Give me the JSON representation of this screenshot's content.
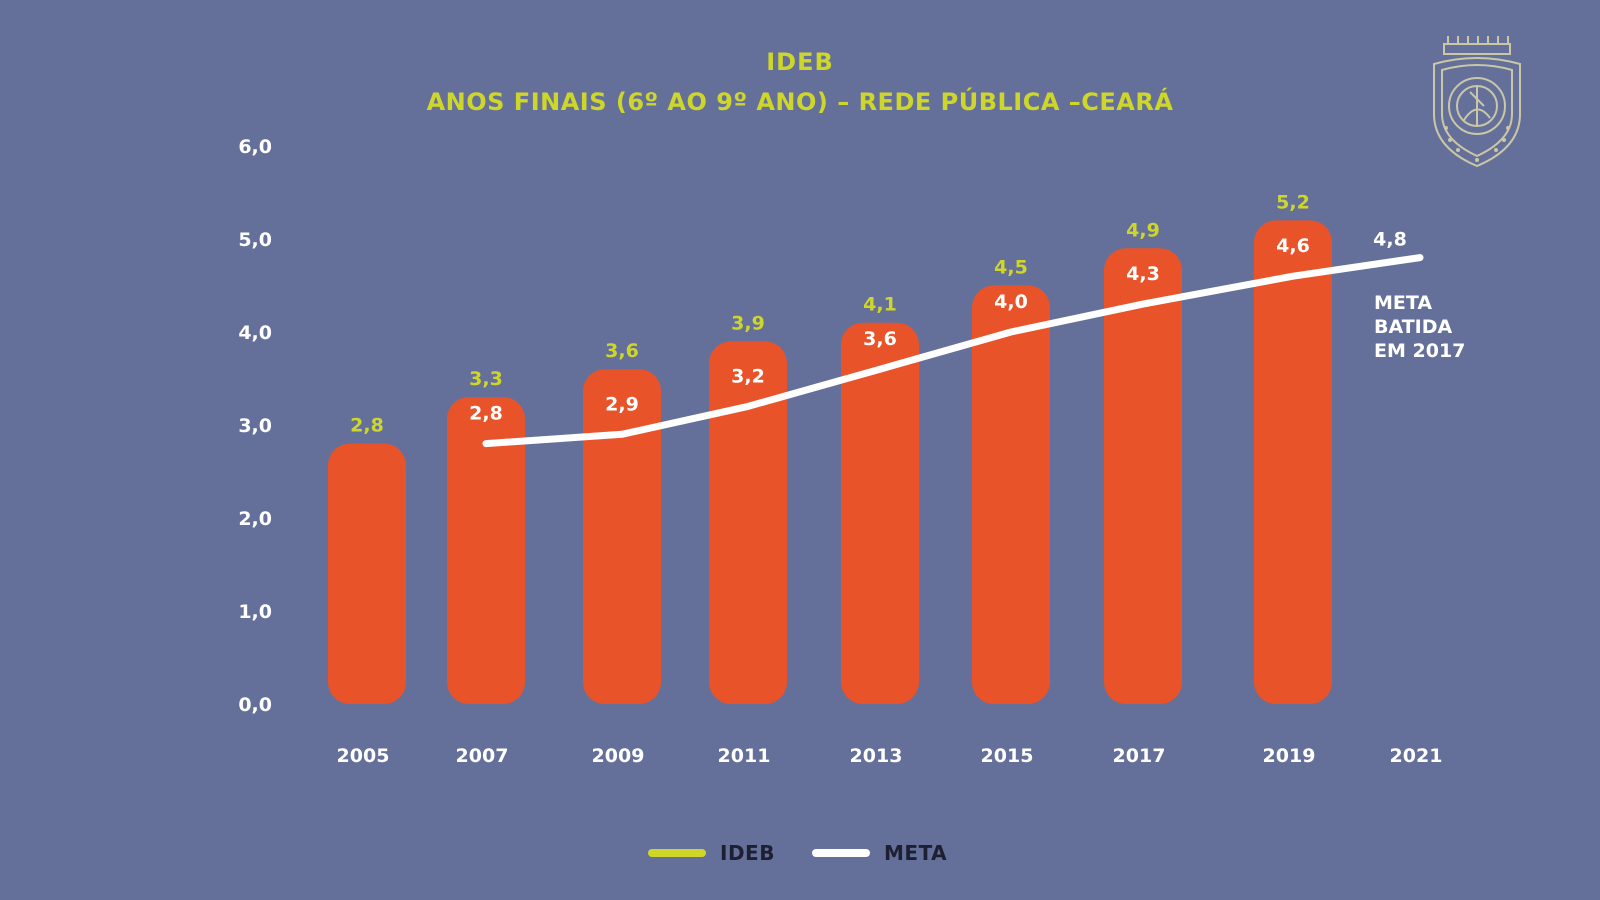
{
  "title": "IDEB",
  "subtitle": "ANOS FINAIS (6º AO 9º ANO) – REDE PÚBLICA –CEARÁ",
  "annotation": [
    "META",
    "BATIDA",
    "EM 2017"
  ],
  "legend": {
    "ideb": "IDEB",
    "meta": "META"
  },
  "colors": {
    "background": "#65709a",
    "bar": "#e9532a",
    "ideb": "#cfd62a",
    "meta": "#ffffff",
    "axis_text": "#ffffff"
  },
  "chart_data": {
    "type": "bar",
    "categories": [
      "2005",
      "2007",
      "2009",
      "2011",
      "2013",
      "2015",
      "2017",
      "2019",
      "2021"
    ],
    "ylim": [
      0,
      6
    ],
    "y_ticks": [
      "0,0",
      "1,0",
      "2,0",
      "3,0",
      "4,0",
      "5,0",
      "6,0"
    ],
    "series": [
      {
        "name": "IDEB",
        "type": "bar",
        "values": [
          2.8,
          3.3,
          3.6,
          3.9,
          4.1,
          4.5,
          4.9,
          5.2,
          null
        ],
        "labels": [
          "2,8",
          "3,3",
          "3,6",
          "3,9",
          "4,1",
          "4,5",
          "4,9",
          "5,2",
          ""
        ]
      },
      {
        "name": "META",
        "type": "line",
        "values": [
          null,
          2.8,
          2.9,
          3.2,
          3.6,
          4.0,
          4.3,
          4.6,
          4.8
        ],
        "labels": [
          "",
          "2,8",
          "2,9",
          "3,2",
          "3,6",
          "4,0",
          "4,3",
          "4,6",
          "4,8"
        ]
      }
    ],
    "grid": false,
    "legend_position": "bottom-center"
  }
}
